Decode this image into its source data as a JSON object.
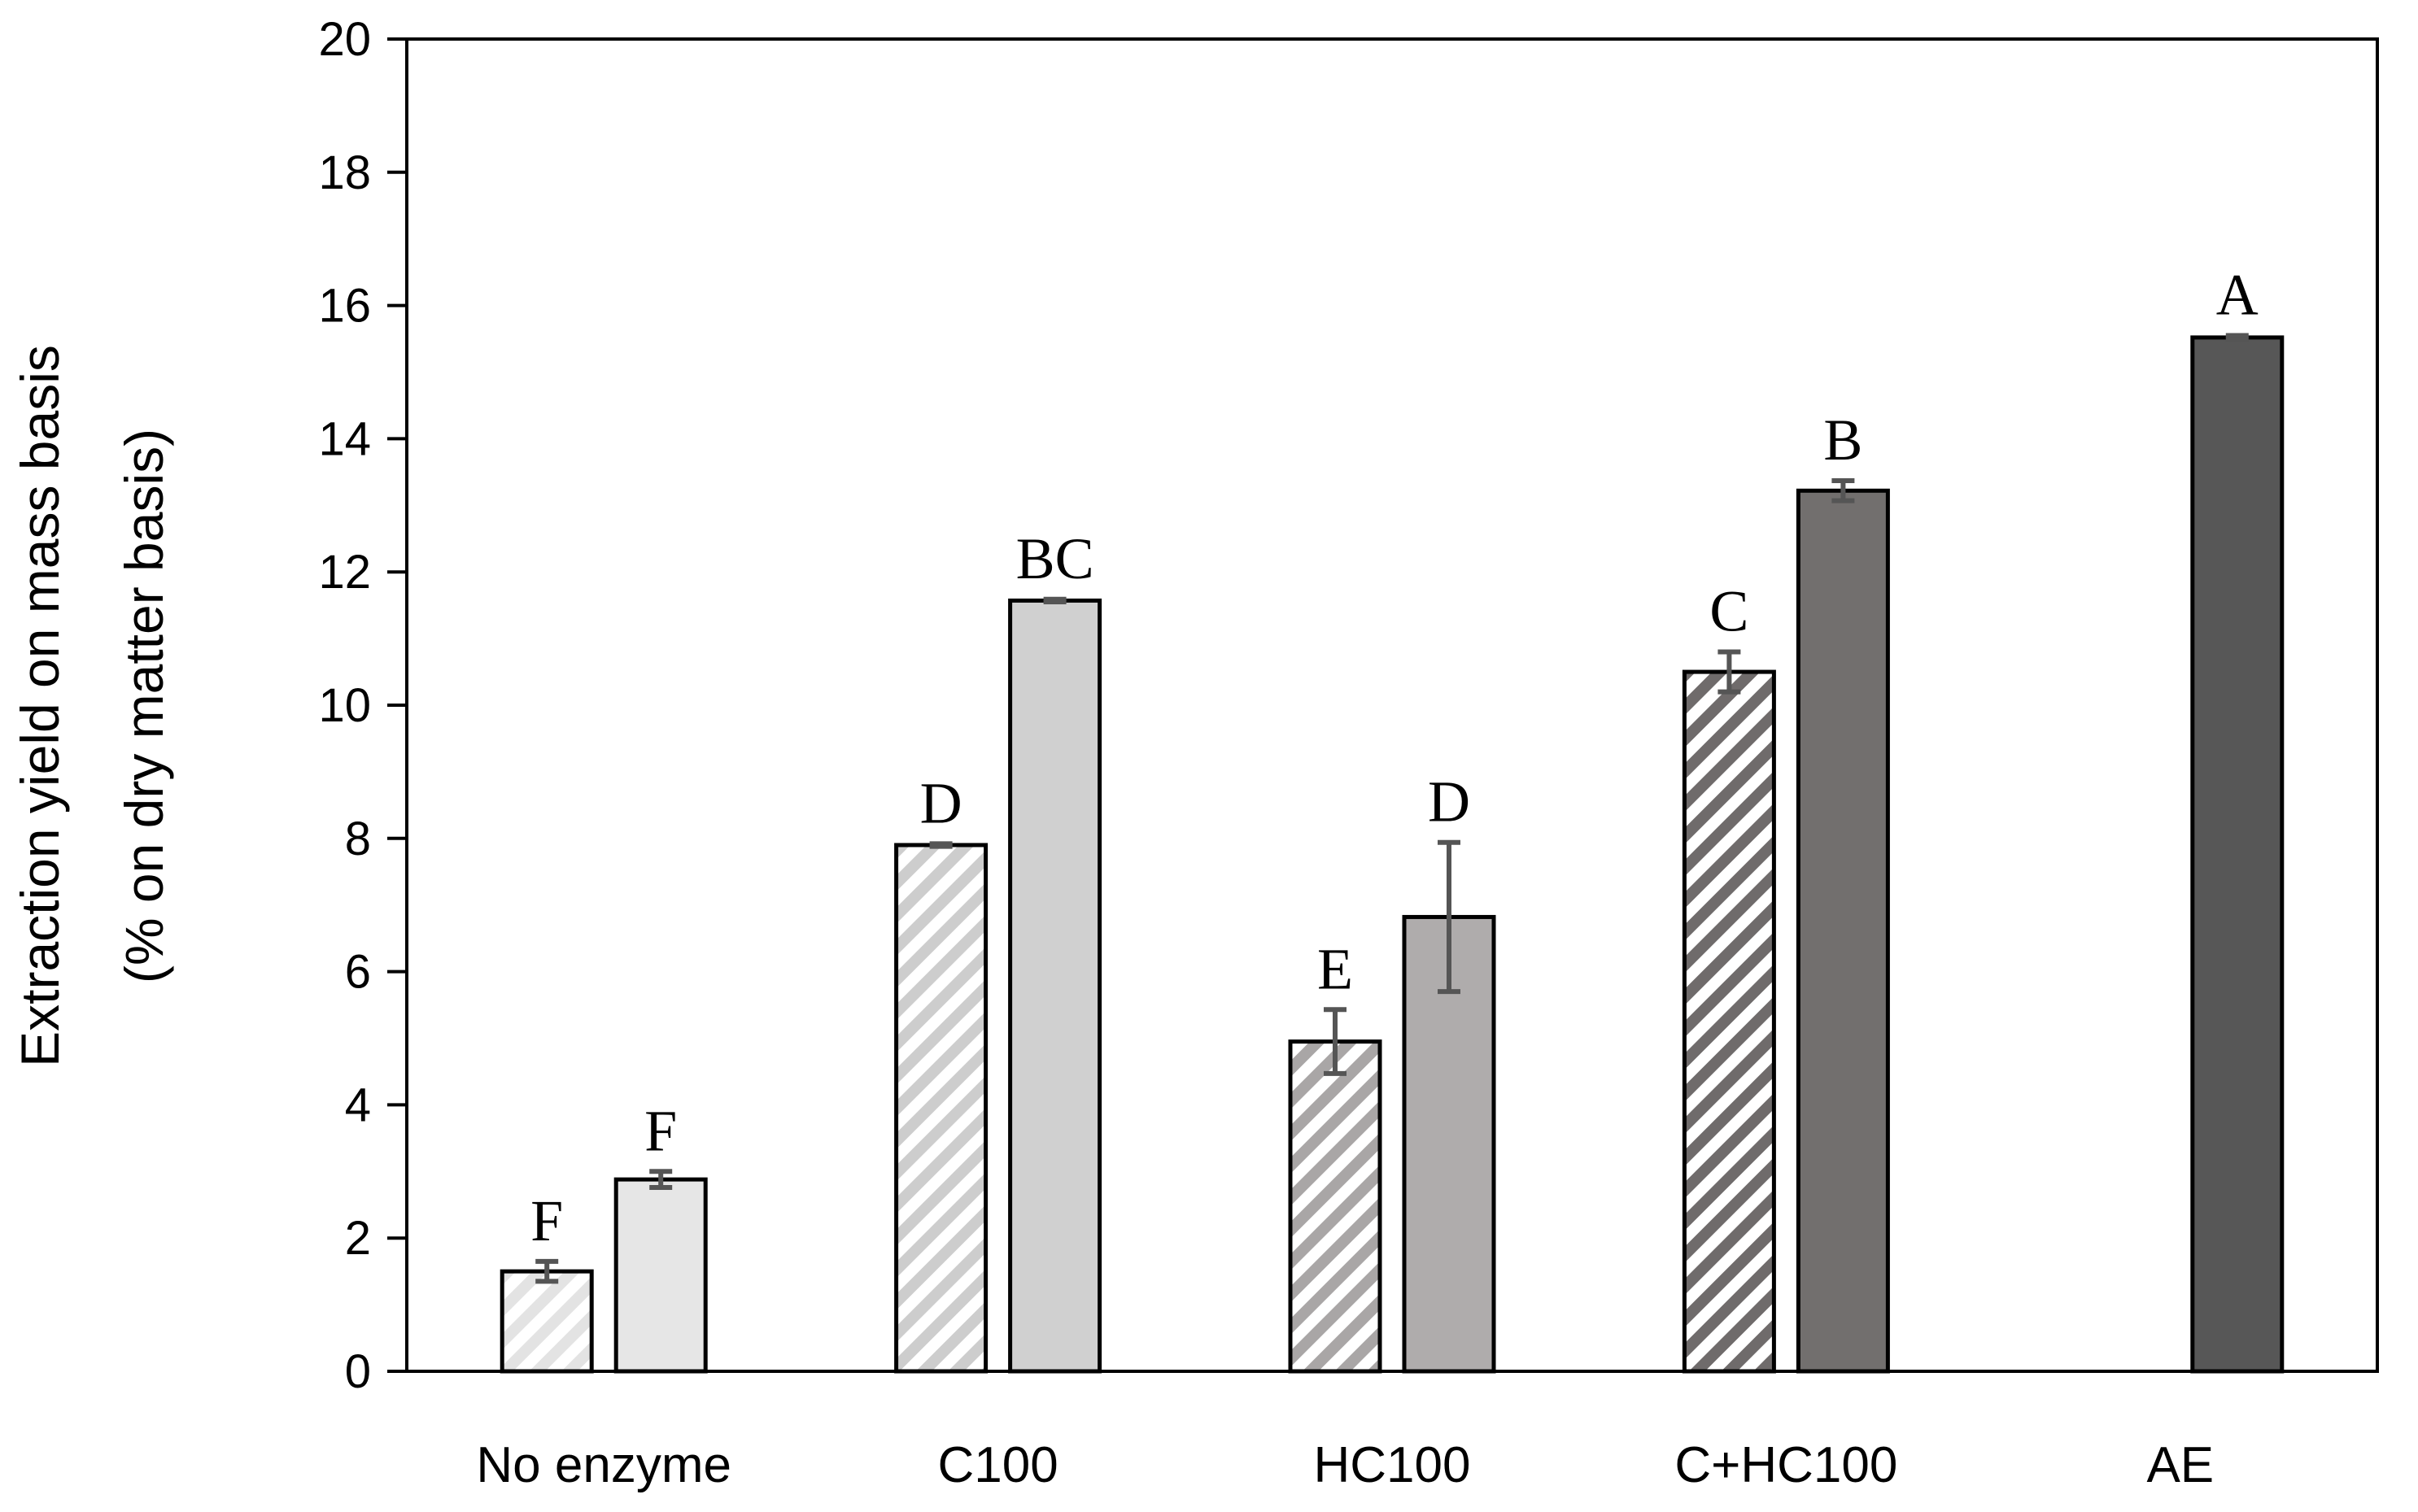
{
  "chart_data": {
    "type": "bar",
    "title": "",
    "xlabel": "",
    "ylabel_line1": "Extraction yield on mass basis",
    "ylabel_line2": "(% on dry matter basis)",
    "ylim": [
      0,
      20
    ],
    "yticks": [
      0,
      2,
      4,
      6,
      8,
      10,
      12,
      14,
      16,
      18,
      20
    ],
    "grid": false,
    "legend": "none",
    "categories": [
      "No enzyme",
      "C100",
      "HC100",
      "C+HC100",
      "AE"
    ],
    "series": [
      {
        "name": "hatched",
        "pattern": "diagonal-stripes",
        "values": [
          1.5,
          7.9,
          4.95,
          10.5,
          null
        ],
        "errors": [
          0.15,
          0.02,
          0.48,
          0.3,
          null
        ],
        "letters": [
          "F",
          "D",
          "E",
          "C",
          null
        ],
        "colors": [
          "#e3e3e3",
          "#cdcdcd",
          "#a9a6a6",
          "#6f6b6b",
          null
        ]
      },
      {
        "name": "solid",
        "pattern": "solid",
        "values": [
          2.88,
          11.57,
          6.82,
          13.22,
          15.52
        ],
        "errors": [
          0.12,
          0.02,
          1.12,
          0.15,
          0.03
        ],
        "letters": [
          "F",
          "BC",
          "D",
          "B",
          "A"
        ],
        "colors": [
          "#e6e6e6",
          "#d0d0d0",
          "#afacac",
          "#726f6e",
          "#575757"
        ]
      }
    ]
  }
}
